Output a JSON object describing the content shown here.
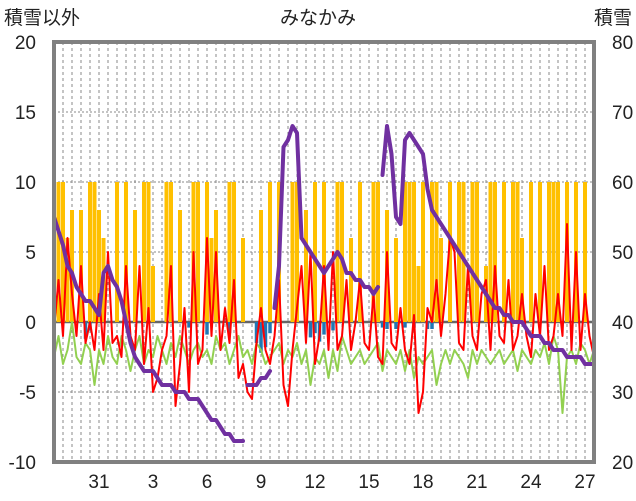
{
  "chart_data": {
    "type": "line",
    "title": "みなかみ",
    "ylabel_left": "積雪以外",
    "ylabel_right": "積雪",
    "ylim_left": [
      -10,
      20
    ],
    "ylim_right": [
      20,
      80
    ],
    "yticks_left": [
      "20",
      "15",
      "10",
      "5",
      "0",
      "-5",
      "-10"
    ],
    "yticks_right": [
      "80",
      "70",
      "60",
      "50",
      "40",
      "30",
      "20"
    ],
    "xlim": [
      0,
      60
    ],
    "xticks": [
      {
        "x": 5,
        "label": "31"
      },
      {
        "x": 11,
        "label": "3"
      },
      {
        "x": 17,
        "label": "6"
      },
      {
        "x": 23,
        "label": "9"
      },
      {
        "x": 29,
        "label": "12"
      },
      {
        "x": 35,
        "label": "15"
      },
      {
        "x": 41,
        "label": "18"
      },
      {
        "x": 47,
        "label": "21"
      },
      {
        "x": 53,
        "label": "24"
      },
      {
        "x": 59,
        "label": "27"
      }
    ],
    "grid": true,
    "colors": {
      "sunshine": "#FFC000",
      "precip": "#1F77B4",
      "temp_max": "#FF0000",
      "temp_min": "#92D050",
      "snow_depth": "#7030A0",
      "frame": "#808080",
      "grid": "#888888",
      "zero_line": "#666666"
    },
    "series": [
      {
        "role": "sunshine_bars",
        "axis": "left",
        "kind": "bar",
        "x": [
          0.5,
          1,
          1.5,
          2,
          3,
          4,
          4.5,
          5,
          5.5,
          7,
          8,
          9,
          10,
          10.5,
          11,
          12.5,
          13,
          14,
          15.5,
          16,
          17,
          17.5,
          18,
          19.5,
          20,
          21,
          23,
          24,
          25,
          26.5,
          27,
          28,
          29,
          30,
          31.5,
          32,
          33,
          34,
          35.5,
          36,
          37,
          38,
          39,
          39.5,
          40,
          40.5,
          41,
          42,
          42.5,
          43,
          44,
          45,
          45.5,
          46.5,
          47,
          48,
          48.5,
          49,
          50,
          51,
          51.5,
          52,
          53,
          54,
          55,
          55.5,
          56,
          57,
          58,
          59
        ],
        "values": [
          10,
          10,
          6,
          8,
          8,
          10,
          10,
          8,
          6,
          10,
          10,
          8,
          10,
          10,
          4,
          10,
          10,
          8,
          10,
          10,
          10,
          6,
          8,
          10,
          10,
          6,
          8,
          10,
          10,
          10,
          10,
          8,
          10,
          10,
          10,
          10,
          6,
          10,
          10,
          10,
          8,
          6,
          10,
          10,
          10,
          4,
          10,
          10,
          10,
          6,
          10,
          10,
          10,
          10,
          10,
          4,
          10,
          10,
          10,
          10,
          10,
          6,
          10,
          10,
          10,
          10,
          10,
          10,
          10,
          10
        ]
      },
      {
        "role": "precip_bars",
        "axis": "left",
        "kind": "bar",
        "x": [
          3.5,
          4,
          15,
          17,
          19.5,
          22.5,
          23,
          23.5,
          24,
          28.5,
          29,
          29.5,
          30,
          31,
          36.5,
          37,
          38,
          39,
          40,
          41.5,
          42
        ],
        "values": [
          -1.2,
          -0.6,
          -0.4,
          -0.9,
          -0.8,
          -1.5,
          -2.2,
          -1.8,
          -0.8,
          -1.1,
          -0.8,
          -1.4,
          -0.9,
          -0.6,
          -0.4,
          -0.5,
          -0.5,
          -0.4,
          -0.4,
          -0.5,
          -0.5
        ]
      },
      {
        "role": "temp_max_line",
        "axis": "left",
        "kind": "line",
        "x": [
          0,
          0.5,
          1,
          1.5,
          2,
          2.5,
          3,
          3.5,
          4,
          4.5,
          5,
          5.5,
          6,
          6.5,
          7,
          7.5,
          8,
          8.5,
          9,
          9.5,
          10,
          10.5,
          11,
          11.5,
          12,
          12.5,
          13,
          13.5,
          14,
          14.5,
          15,
          15.5,
          16,
          16.5,
          17,
          17.5,
          18,
          18.5,
          19,
          19.5,
          20,
          20.5,
          21,
          21.5,
          22,
          22.5,
          23,
          23.5,
          24,
          24.5,
          25,
          25.5,
          26,
          26.5,
          27,
          27.5,
          28,
          28.5,
          29,
          29.5,
          30,
          30.5,
          31,
          31.5,
          32,
          32.5,
          33,
          33.5,
          34,
          34.5,
          35,
          35.5,
          36,
          36.5,
          37,
          37.5,
          38,
          38.5,
          39,
          39.5,
          40,
          40.5,
          41,
          41.5,
          42,
          42.5,
          43,
          43.5,
          44,
          44.5,
          45,
          45.5,
          46,
          46.5,
          47,
          47.5,
          48,
          48.5,
          49,
          49.5,
          50,
          50.5,
          51,
          51.5,
          52,
          52.5,
          53,
          53.5,
          54,
          54.5,
          55,
          55.5,
          56,
          56.5,
          57,
          57.5,
          58,
          58.5,
          59,
          59.5,
          60
        ],
        "values": [
          -0.5,
          3,
          -1,
          6,
          2,
          -1,
          4,
          -1.5,
          0,
          -2,
          2,
          -2,
          5,
          -1.5,
          -1,
          -2.5,
          4,
          -1,
          -2,
          4,
          -3,
          1,
          -5,
          -4,
          -2,
          -1,
          4,
          -6,
          -3,
          1,
          -5,
          5,
          -3,
          -2,
          6,
          -1,
          5,
          -2,
          1,
          -1.5,
          3,
          -4,
          -3,
          -5,
          -5.5,
          -1.5,
          1,
          -2,
          -3,
          -1,
          3,
          -4.5,
          -6,
          -2,
          1,
          4,
          -1.5,
          5,
          -3,
          -1,
          4,
          -2,
          5,
          -2,
          -1,
          3,
          -2,
          0,
          3,
          -1.5,
          -2,
          2,
          -2.5,
          -3,
          5,
          -1.5,
          -2,
          1,
          -2,
          -3,
          0.5,
          -6.5,
          -5,
          1,
          0,
          3,
          -1,
          2,
          6,
          5,
          -1.5,
          -2,
          4,
          -1,
          -2,
          2,
          3,
          -2,
          4,
          -1,
          -1.5,
          3,
          -2,
          -1,
          2,
          -1,
          -2.5,
          2,
          -1,
          4,
          -2,
          -1,
          2,
          -1,
          7,
          -2,
          5,
          -2,
          2,
          -1,
          -2.5
        ]
      },
      {
        "role": "temp_min_line",
        "axis": "left",
        "kind": "line",
        "x": [
          0,
          0.5,
          1,
          1.5,
          2,
          2.5,
          3,
          3.5,
          4,
          4.5,
          5,
          5.5,
          6,
          6.5,
          7,
          7.5,
          8,
          8.5,
          9,
          9.5,
          10,
          10.5,
          11,
          11.5,
          12,
          12.5,
          13,
          13.5,
          14,
          14.5,
          15,
          15.5,
          16,
          16.5,
          17,
          17.5,
          18,
          18.5,
          19,
          19.5,
          20,
          20.5,
          21,
          21.5,
          22,
          22.5,
          23,
          23.5,
          24,
          24.5,
          25,
          25.5,
          26,
          26.5,
          27,
          27.5,
          28,
          28.5,
          29,
          29.5,
          30,
          30.5,
          31,
          31.5,
          32,
          32.5,
          33,
          33.5,
          34,
          34.5,
          35,
          35.5,
          36,
          36.5,
          37,
          37.5,
          38,
          38.5,
          39,
          39.5,
          40,
          40.5,
          41,
          41.5,
          42,
          42.5,
          43,
          43.5,
          44,
          44.5,
          45,
          45.5,
          46,
          46.5,
          47,
          47.5,
          48,
          48.5,
          49,
          49.5,
          50,
          50.5,
          51,
          51.5,
          52,
          52.5,
          53,
          53.5,
          54,
          54.5,
          55,
          55.5,
          56,
          56.5,
          57,
          57.5,
          58,
          58.5,
          59,
          59.5,
          60
        ],
        "values": [
          -2.5,
          -1,
          -3,
          -2,
          0,
          -2.5,
          -3,
          -1.5,
          -2,
          -4.5,
          -2,
          -3,
          -1,
          -2.5,
          -3,
          -1,
          -2,
          -3.5,
          -2,
          -1,
          -3,
          -2,
          -2.5,
          -1,
          -2,
          -3,
          -1.5,
          -2.5,
          -1,
          -2,
          -3,
          -2,
          -1.5,
          -2.5,
          -2,
          -3,
          -1,
          -2,
          -1.5,
          -3,
          -2,
          -1,
          -2.5,
          -2,
          -3,
          -1.5,
          -2,
          -3,
          -2.5,
          -2,
          -1.5,
          -3,
          -2,
          -2.5,
          -1.5,
          -3,
          -2,
          -4.5,
          -2.5,
          -3,
          -2,
          -4,
          -2,
          -3.5,
          -1,
          -2,
          -3,
          -2.5,
          -2,
          -3,
          -2.5,
          -2,
          -1.5,
          -3.5,
          -2,
          -2.5,
          -3,
          -2,
          -3.5,
          -2,
          -4,
          -2.5,
          -3,
          -2.5,
          -2,
          -4.5,
          -3,
          -2,
          -3,
          -2,
          -2.5,
          -3,
          -4,
          -2,
          -3,
          -2,
          -2.5,
          -3,
          -2.5,
          -2,
          -3,
          -2.5,
          -2,
          -3.5,
          -2,
          -2.5,
          -3,
          -2,
          -2.5,
          -1.5,
          -3,
          -1,
          -2,
          -6.5,
          -2.5,
          -2,
          -3,
          -1.5,
          -2,
          -3,
          -2
        ]
      },
      {
        "role": "snow_depth_line",
        "axis": "right",
        "kind": "line",
        "segments": [
          {
            "x": [
              0,
              0.5,
              1,
              1.5,
              2,
              2.5,
              3,
              3.5,
              4,
              4.5,
              5,
              5.5,
              6,
              6.5,
              7,
              7.5,
              8,
              8.5,
              9,
              9.5,
              10,
              10.5,
              11,
              11.5,
              12,
              12.5,
              13,
              13.5,
              14,
              14.5,
              15,
              15.5,
              16,
              16.5,
              17,
              17.5,
              18,
              18.5,
              19,
              19.5,
              20,
              20.5,
              21
            ],
            "values": [
              55,
              53,
              51,
              48,
              47,
              45,
              44,
              43,
              43,
              42,
              41,
              47,
              48,
              46,
              45,
              43,
              40,
              37,
              35,
              34,
              33,
              33,
              33,
              32,
              31,
              31,
              31,
              30,
              30,
              30,
              29,
              29,
              29,
              28,
              27,
              26,
              26,
              25,
              24,
              24,
              23,
              23,
              23
            ]
          },
          {
            "x": [
              21.5,
              22,
              22.5,
              23,
              23.5,
              24
            ],
            "values": [
              31,
              31,
              31,
              32,
              32,
              33
            ]
          },
          {
            "x": [
              24.5,
              25,
              25.5,
              26,
              26.5,
              27,
              27.5,
              28,
              28.5,
              29,
              29.5,
              30,
              30.5,
              31,
              31.5,
              32,
              32.5,
              33,
              33.5,
              34,
              34.5,
              35,
              35.5,
              36
            ],
            "values": [
              42,
              48,
              65,
              66,
              68,
              67,
              52,
              51,
              50,
              49,
              48,
              47,
              48,
              49,
              50,
              49,
              47,
              47,
              46,
              46,
              45,
              45,
              44,
              45
            ]
          },
          {
            "x": [
              36.5,
              37,
              37.5,
              38,
              38.5,
              39,
              39.5,
              40,
              40.5,
              41,
              41.5,
              42,
              42.5,
              43,
              43.5,
              44,
              44.5,
              45,
              45.5,
              46,
              46.5,
              47,
              47.5,
              48,
              48.5,
              49,
              49.5,
              50,
              50.5,
              51,
              51.5,
              52,
              52.5,
              53,
              53.5,
              54,
              54.5,
              55,
              55.5,
              56,
              56.5,
              57,
              57.5,
              58,
              58.5,
              59,
              59.5,
              60
            ],
            "values": [
              61,
              68,
              64,
              55,
              54,
              66,
              67,
              66,
              65,
              64,
              59,
              56,
              55,
              54,
              53,
              52,
              51,
              50,
              49,
              48,
              47,
              46,
              45,
              44,
              43,
              42,
              42,
              41,
              41,
              40,
              40,
              40,
              39,
              38,
              38,
              38,
              37,
              37,
              36,
              36,
              36,
              35,
              35,
              35,
              35,
              34,
              34,
              34
            ]
          }
        ]
      }
    ]
  }
}
